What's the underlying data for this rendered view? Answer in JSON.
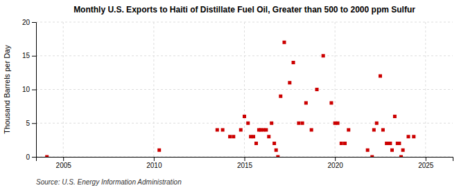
{
  "chart_data": {
    "type": "scatter",
    "title": "Monthly U.S. Exports to Haiti of Distillate Fuel Oil, Greater than 500 to 2000 ppm Sulfur",
    "ylabel": "Thousand Barrels per Day",
    "source": "Source: U.S. Energy Information Administration",
    "color": "#cc0000",
    "marker": "square",
    "grid": true,
    "xlim": [
      2003.5,
      2026.5
    ],
    "ylim": [
      0,
      20
    ],
    "xticks": [
      2005,
      2010,
      2015,
      2020,
      2025
    ],
    "yticks": [
      0,
      5,
      10,
      15,
      20
    ],
    "x": [
      2004.1,
      2010.3,
      2013.5,
      2013.8,
      2014.2,
      2014.4,
      2014.8,
      2015.0,
      2015.2,
      2015.35,
      2015.5,
      2015.65,
      2015.8,
      2015.9,
      2016.05,
      2016.2,
      2016.35,
      2016.5,
      2016.65,
      2016.75,
      2016.85,
      2017.0,
      2017.2,
      2017.5,
      2017.7,
      2018.0,
      2018.2,
      2018.4,
      2018.7,
      2019.0,
      2019.35,
      2019.8,
      2020.0,
      2020.15,
      2020.35,
      2020.55,
      2020.75,
      2021.8,
      2022.05,
      2022.15,
      2022.3,
      2022.5,
      2022.65,
      2022.85,
      2022.95,
      2023.05,
      2023.15,
      2023.3,
      2023.45,
      2023.55,
      2023.65,
      2023.75,
      2024.05,
      2024.35
    ],
    "values": [
      0,
      1,
      4,
      4,
      3,
      3,
      4,
      6,
      5,
      3,
      3,
      2,
      4,
      4,
      4,
      4,
      3,
      5,
      2,
      1,
      0,
      9,
      17,
      11,
      14,
      5,
      5,
      8,
      4,
      10,
      15,
      8,
      5,
      5,
      2,
      2,
      4,
      1,
      0,
      4,
      5,
      12,
      4,
      2,
      2,
      2,
      1,
      6,
      2,
      2,
      0,
      1,
      3,
      3
    ]
  }
}
